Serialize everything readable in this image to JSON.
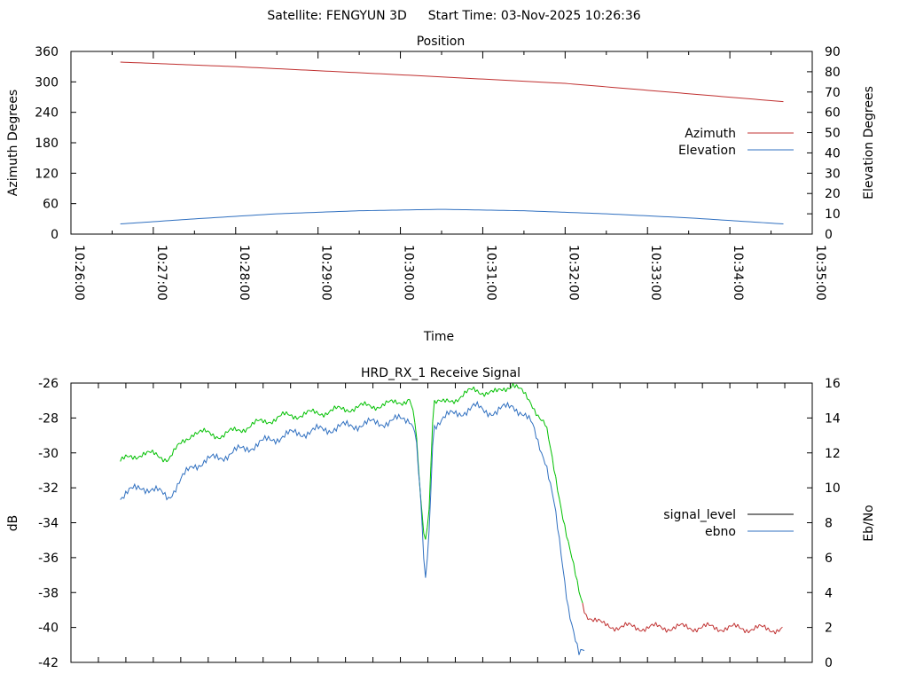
{
  "header": {
    "satellite": "Satellite: FENGYUN 3D",
    "start_time": "Start Time: 03-Nov-2025 10:26:36"
  },
  "chart_data": [
    {
      "type": "line",
      "title": "Position",
      "xlabel": "Time",
      "ylabel": "Azimuth Degrees",
      "y2label": "Elevation Degrees",
      "xlim_seconds_from_10_26_00": [
        0,
        540
      ],
      "ylim": [
        0,
        360
      ],
      "y2lim": [
        0,
        90
      ],
      "yticks": [
        "0",
        "60",
        "120",
        "180",
        "240",
        "300",
        "360"
      ],
      "y2ticks": [
        "0",
        "10",
        "20",
        "30",
        "40",
        "50",
        "60",
        "70",
        "80",
        "90"
      ],
      "xticks": [
        "10:26:00",
        "10:27:00",
        "10:28:00",
        "10:29:00",
        "10:30:00",
        "10:31:00",
        "10:32:00",
        "10:33:00",
        "10:34:00",
        "10:35:00"
      ],
      "legend_placement": "right",
      "series": [
        {
          "name": "Azimuth",
          "axis": "y",
          "color": "#c03030",
          "x": [
            36,
            120,
            240,
            360,
            519
          ],
          "values": [
            339,
            330,
            314,
            297,
            261
          ]
        },
        {
          "name": "Elevation",
          "axis": "y2",
          "color": "#3070c0",
          "x": [
            36,
            90,
            150,
            210,
            270,
            330,
            390,
            450,
            519
          ],
          "values": [
            5,
            7.5,
            10,
            11.5,
            12.2,
            11.5,
            10,
            8,
            5
          ]
        }
      ]
    },
    {
      "type": "line",
      "title": "HRD_RX_1 Receive Signal",
      "ylabel": "dB",
      "y2label": "Eb/No",
      "xlim_seconds_from_10_26_00": [
        0,
        540
      ],
      "ylim": [
        -42,
        -26
      ],
      "y2lim": [
        0,
        16
      ],
      "yticks": [
        "-42",
        "-40",
        "-38",
        "-36",
        "-34",
        "-32",
        "-30",
        "-28",
        "-26"
      ],
      "y2ticks": [
        "0",
        "2",
        "4",
        "6",
        "8",
        "10",
        "12",
        "14",
        "16"
      ],
      "legend_placement": "right",
      "signal_threshold_db": -38.7,
      "colors": {
        "above": "#00c000",
        "below": "#c03030",
        "ebno": "#3070c0",
        "legend_signal": "#000000"
      },
      "series": [
        {
          "name": "signal_level",
          "axis": "y",
          "x": [
            36,
            52,
            71,
            89,
            110,
            136,
            155,
            181,
            207,
            233,
            247,
            251,
            255,
            258,
            261,
            264,
            271,
            294,
            310,
            322,
            336,
            346,
            352,
            362,
            370,
            375,
            388,
            413,
            465,
            519
          ],
          "values": [
            -30.5,
            -30.0,
            -30.3,
            -28.8,
            -29.0,
            -28.3,
            -27.9,
            -27.7,
            -27.4,
            -27.2,
            -26.9,
            -28.5,
            -33,
            -35.2,
            -33,
            -27.0,
            -27.2,
            -26.4,
            -26.6,
            -26.0,
            -27.2,
            -28.5,
            -31,
            -35,
            -38,
            -39.2,
            -39.9,
            -40.0,
            -40.0,
            -40.1
          ]
        },
        {
          "name": "ebno",
          "axis": "y2",
          "x": [
            36,
            52,
            71,
            89,
            110,
            136,
            155,
            181,
            207,
            233,
            247,
            251,
            255,
            258,
            261,
            264,
            271,
            294,
            310,
            322,
            336,
            346,
            352,
            362,
            370,
            375
          ],
          "values": [
            9.5,
            10.1,
            9.5,
            11.3,
            11.8,
            12.5,
            13.0,
            13.3,
            13.6,
            13.8,
            14.0,
            13.3,
            9.0,
            4.2,
            7.5,
            13.6,
            14.0,
            14.6,
            14.3,
            14.8,
            13.6,
            11.5,
            9.0,
            3.4,
            0.4,
            0.6
          ]
        }
      ]
    }
  ]
}
